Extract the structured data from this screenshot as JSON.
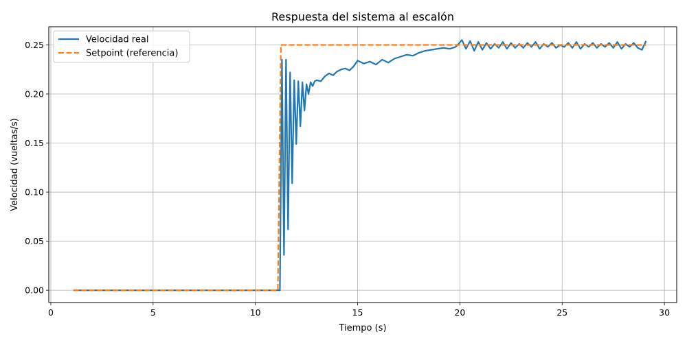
{
  "chart_data": {
    "type": "line",
    "title": "Respuesta del sistema al escalón",
    "xlabel": "Tiempo (s)",
    "ylabel": "Velocidad (vueltas/s)",
    "xlim": [
      -0.1,
      30.6
    ],
    "ylim": [
      -0.0125,
      0.2685
    ],
    "xticks": [
      0,
      5,
      10,
      15,
      20,
      25,
      30
    ],
    "yticks": [
      0.0,
      0.05,
      0.1,
      0.15,
      0.2,
      0.25
    ],
    "xtick_labels": [
      "0",
      "5",
      "10",
      "15",
      "20",
      "25",
      "30"
    ],
    "ytick_labels": [
      "0.00",
      "0.05",
      "0.10",
      "0.15",
      "0.20",
      "0.25"
    ],
    "grid": true,
    "legend_position": "top-left",
    "series": [
      {
        "name": "Velocidad real",
        "color": "#1f77b4",
        "style": "solid",
        "x": [
          1.1,
          11.2,
          11.3,
          11.4,
          11.5,
          11.6,
          11.7,
          11.8,
          11.9,
          12.0,
          12.1,
          12.2,
          12.3,
          12.4,
          12.5,
          12.6,
          12.7,
          12.8,
          12.9,
          13.0,
          13.2,
          13.4,
          13.6,
          13.8,
          14.0,
          14.2,
          14.4,
          14.6,
          14.8,
          15.0,
          15.3,
          15.6,
          15.9,
          16.2,
          16.5,
          16.8,
          17.1,
          17.4,
          17.7,
          18.0,
          18.3,
          18.6,
          18.9,
          19.2,
          19.5,
          19.8,
          20.1,
          20.3,
          20.5,
          20.7,
          20.9,
          21.1,
          21.3,
          21.5,
          21.7,
          21.9,
          22.1,
          22.3,
          22.5,
          22.7,
          22.9,
          23.1,
          23.3,
          23.5,
          23.7,
          23.9,
          24.1,
          24.3,
          24.5,
          24.7,
          24.9,
          25.1,
          25.3,
          25.5,
          25.7,
          25.9,
          26.1,
          26.3,
          26.5,
          26.7,
          26.9,
          27.1,
          27.3,
          27.5,
          27.7,
          27.9,
          28.1,
          28.3,
          28.5,
          28.7,
          28.9,
          29.1
        ],
        "y": [
          0.0,
          0.0,
          0.235,
          0.036,
          0.235,
          0.062,
          0.222,
          0.109,
          0.214,
          0.149,
          0.213,
          0.167,
          0.212,
          0.183,
          0.21,
          0.2,
          0.212,
          0.208,
          0.213,
          0.214,
          0.213,
          0.218,
          0.221,
          0.219,
          0.223,
          0.225,
          0.226,
          0.224,
          0.228,
          0.234,
          0.231,
          0.233,
          0.23,
          0.235,
          0.232,
          0.236,
          0.238,
          0.24,
          0.239,
          0.242,
          0.244,
          0.245,
          0.246,
          0.247,
          0.246,
          0.248,
          0.255,
          0.246,
          0.254,
          0.244,
          0.253,
          0.245,
          0.252,
          0.246,
          0.251,
          0.247,
          0.253,
          0.246,
          0.252,
          0.247,
          0.251,
          0.247,
          0.252,
          0.248,
          0.253,
          0.246,
          0.251,
          0.248,
          0.252,
          0.247,
          0.25,
          0.248,
          0.252,
          0.247,
          0.253,
          0.246,
          0.251,
          0.248,
          0.252,
          0.247,
          0.251,
          0.248,
          0.252,
          0.247,
          0.253,
          0.246,
          0.251,
          0.248,
          0.252,
          0.247,
          0.245,
          0.254
        ]
      },
      {
        "name": "Setpoint (referencia)",
        "color": "#ff7f0e",
        "style": "dashed",
        "x": [
          1.1,
          11.1,
          11.25,
          29.1
        ],
        "y": [
          0.0,
          0.0,
          0.25,
          0.25
        ]
      }
    ]
  }
}
